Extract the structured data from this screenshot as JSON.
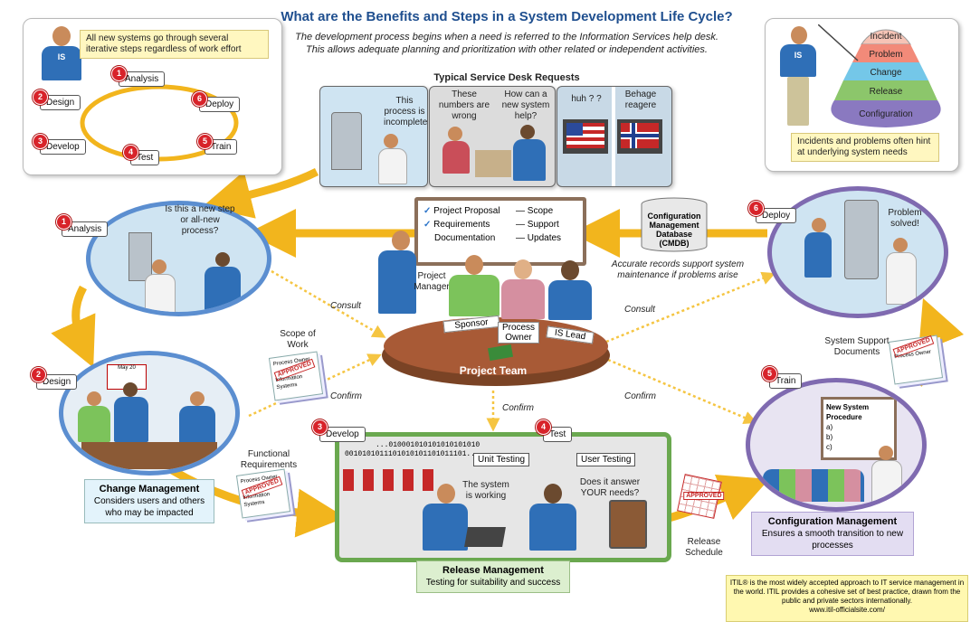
{
  "title": "What are the Benefits and Steps in a System Development Life Cycle?",
  "subtitle_lines": [
    "The development process begins when a need is referred to the Information Services help desk.",
    "This allows adequate planning and prioritization with other related or independent activities."
  ],
  "lifecycle_panel": {
    "note": "All new systems go through several iterative steps regardless of work effort",
    "badge": "IS",
    "steps": [
      {
        "num": "1",
        "label": "Analysis"
      },
      {
        "num": "2",
        "label": "Design"
      },
      {
        "num": "3",
        "label": "Develop"
      },
      {
        "num": "4",
        "label": "Test"
      },
      {
        "num": "5",
        "label": "Train"
      },
      {
        "num": "6",
        "label": "Deploy"
      }
    ]
  },
  "pyramid_panel": {
    "layers": [
      "Incident",
      "Problem",
      "Change",
      "Release",
      "Configuration"
    ],
    "note": "Incidents and problems often hint at underlying system needs",
    "badge": "IS"
  },
  "service_desk": {
    "heading": "Typical Service Desk Requests",
    "panels": [
      {
        "text": "This process is incomplete"
      },
      {
        "text_a": "These numbers are wrong",
        "text_b": "How can a new system help?"
      },
      {
        "text_a": "huh ? ?",
        "text_b": "Behage reagere"
      }
    ]
  },
  "whiteboard": {
    "checked": [
      "Project Proposal",
      "Requirements"
    ],
    "left_items": [
      "Project Proposal",
      "Requirements",
      "Documentation"
    ],
    "right_items": [
      "Scope",
      "Support",
      "Updates"
    ]
  },
  "cmdb": {
    "label": "Configuration Management Database (CMDB)",
    "caption": "Accurate records support system maintenance if problems arise"
  },
  "project_team": {
    "table_label": "Project Team",
    "project_manager": "Project Manager",
    "roles": [
      "Sponsor",
      "Process Owner",
      "IS Lead"
    ]
  },
  "phases": {
    "analysis": {
      "num": "1",
      "label": "Analysis",
      "bubble": "Is this a new step or all-new process?"
    },
    "design": {
      "num": "2",
      "label": "Design",
      "calendar": "May 20"
    },
    "develop": {
      "num": "3",
      "label": "Develop",
      "binary_1": "...010001010101010101010",
      "binary_2": "0010101011101010101101011101...",
      "bubble": "The system is working"
    },
    "test": {
      "num": "4",
      "label": "Test",
      "bubble": "Does it answer YOUR needs?"
    },
    "train": {
      "num": "5",
      "label": "Train",
      "board_title": "New System Procedure",
      "board_items": [
        "a)",
        "b)",
        "c)"
      ]
    },
    "deploy": {
      "num": "6",
      "label": "Deploy",
      "bubble": "Problem solved!"
    }
  },
  "testing_labels": {
    "unit": "Unit Testing",
    "user": "User Testing"
  },
  "flow_labels": {
    "consult_left": "Consult",
    "consult_right": "Consult",
    "confirm_left": "Confirm",
    "confirm_center": "Confirm",
    "confirm_right": "Confirm"
  },
  "documents": {
    "scope": {
      "label": "Scope of Work",
      "stamp": "APPROVED",
      "line1": "Process Owner",
      "line2": "Information Systems"
    },
    "functional": {
      "label": "Functional Requirements",
      "stamp": "APPROVED",
      "line1": "Process Owner",
      "line2": "Information Systems"
    },
    "support": {
      "label": "System Support Documents",
      "stamp": "APPROVED",
      "line1": "Process Owner"
    },
    "release_schedule": {
      "label": "Release Schedule",
      "stamp": "APPROVED"
    }
  },
  "management": {
    "change": {
      "title": "Change Management",
      "text": "Considers users and others who may be impacted"
    },
    "release": {
      "title": "Release Management",
      "text": "Testing for suitability and success"
    },
    "configuration": {
      "title": "Configuration Management",
      "text": "Ensures a smooth transition to new processes"
    }
  },
  "itil_note": {
    "text": "ITIL® is the most widely accepted approach to IT service management in the world. ITIL provides a cohesive set of best practice, drawn from the public and private sectors internationally.",
    "url": "www.itil-officialsite.com/"
  },
  "colors": {
    "title_blue": "#1f4f8f",
    "arrow_orange": "#f2b51d",
    "step_red": "#d8232a",
    "circle_blue": "#5b8ed0",
    "release_green": "#6aa84f",
    "config_purple": "#7f6ab0"
  }
}
